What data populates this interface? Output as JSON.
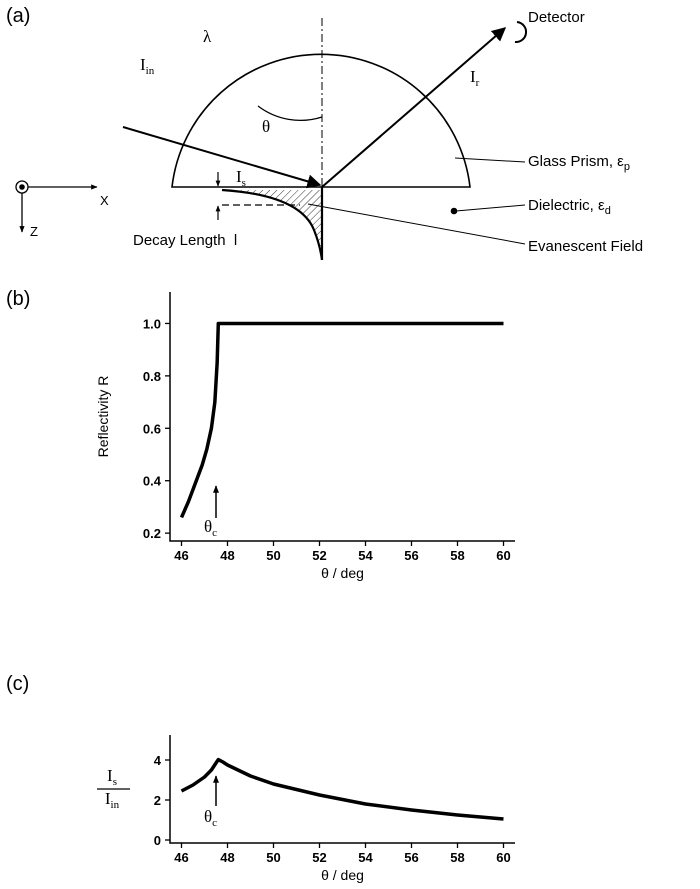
{
  "diagram": {
    "label": "(a)",
    "wavelength": "λ",
    "incident": {
      "base": "I",
      "sub": "in"
    },
    "reflected": {
      "base": "I",
      "sub": "r"
    },
    "angle": "θ",
    "surface": {
      "base": "I",
      "sub": "s"
    },
    "detector": "Detector",
    "prism": {
      "base": "Glass Prism, ε",
      "sub": "p"
    },
    "dielectric": {
      "base": "Dielectric, ε",
      "sub": "d"
    },
    "field": "Evanescent Field",
    "decay": "Decay Length  l",
    "x_axis": "X",
    "z_axis": "Z"
  },
  "chart_data": [
    {
      "type": "line",
      "label": "(b)",
      "ylabel": "Reflectivity R",
      "xlabel": "θ / deg",
      "x": [
        46,
        46.3,
        46.6,
        46.9,
        47.1,
        47.3,
        47.45,
        47.55,
        47.6,
        48,
        50,
        52,
        54,
        56,
        58,
        60
      ],
      "series": [
        {
          "color": "#000000",
          "values": [
            0.26,
            0.32,
            0.39,
            0.46,
            0.52,
            0.6,
            0.7,
            0.85,
            1.0,
            1.0,
            1.0,
            1.0,
            1.0,
            1.0,
            1.0,
            1.0
          ]
        }
      ],
      "xlim": [
        45.5,
        60.5
      ],
      "ylim": [
        0.17,
        1.12
      ],
      "xticks": [
        46,
        48,
        50,
        52,
        54,
        56,
        58,
        60
      ],
      "yticks": [
        0.2,
        0.4,
        0.6,
        0.8,
        {
          "value": 1,
          "label": "1.0"
        }
      ],
      "annotation": {
        "base": "θ",
        "sub": "c"
      }
    },
    {
      "type": "line",
      "label": "(c)",
      "ylabel": {
        "numerator": {
          "base": "I",
          "sub": "s"
        },
        "denominator": {
          "base": "I",
          "sub": "in"
        }
      },
      "xlabel": "θ / deg",
      "x": [
        46,
        46.5,
        47,
        47.3,
        47.5,
        47.6,
        47.8,
        48,
        49,
        50,
        52,
        54,
        56,
        58,
        60
      ],
      "series": [
        {
          "color": "#000000",
          "values": [
            2.45,
            2.75,
            3.15,
            3.5,
            3.85,
            4.02,
            3.9,
            3.75,
            3.2,
            2.8,
            2.25,
            1.8,
            1.5,
            1.25,
            1.05
          ]
        }
      ],
      "xlim": [
        45.5,
        60.5
      ],
      "ylim": [
        -0.15,
        5.25
      ],
      "xticks": [
        46,
        48,
        50,
        52,
        54,
        56,
        58,
        60
      ],
      "yticks": [
        0,
        2,
        4
      ],
      "annotation": {
        "base": "θ",
        "sub": "c"
      }
    }
  ]
}
